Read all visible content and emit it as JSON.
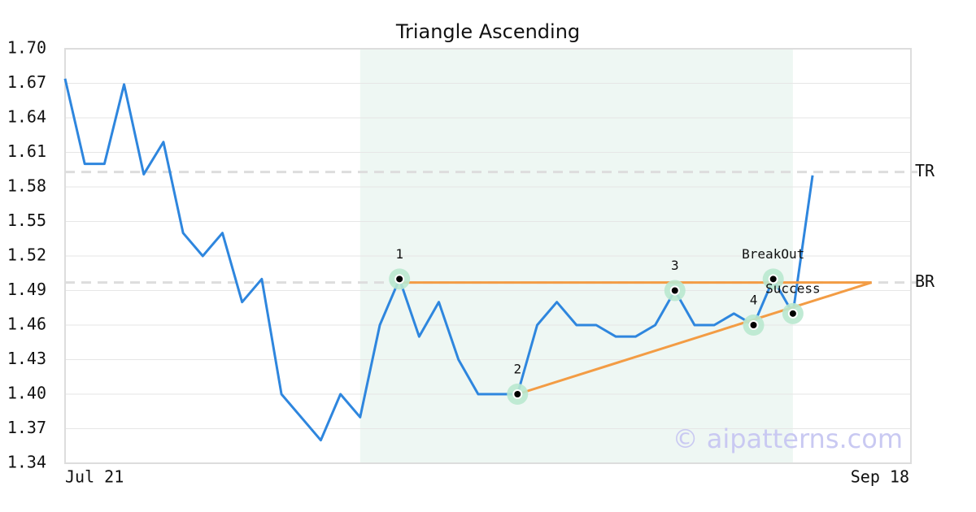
{
  "chart_data": {
    "type": "line",
    "title": "Triangle Ascending",
    "watermark": "© aipatterns.com",
    "categories": [
      "Jul 21",
      null,
      null,
      null,
      null,
      null,
      null,
      null,
      null,
      null,
      null,
      null,
      null,
      null,
      null,
      null,
      null,
      null,
      null,
      null,
      null,
      null,
      null,
      null,
      null,
      null,
      null,
      null,
      null,
      null,
      null,
      null,
      null,
      null,
      null,
      null,
      null,
      null,
      null,
      null,
      null,
      null,
      null,
      "Sep 18"
    ],
    "values": [
      1.674,
      1.6,
      1.6,
      1.669,
      1.591,
      1.619,
      1.54,
      1.52,
      1.54,
      1.48,
      1.5,
      1.4,
      1.38,
      1.36,
      1.4,
      1.38,
      1.46,
      1.5,
      1.45,
      1.48,
      1.43,
      1.4,
      1.4,
      1.4,
      1.46,
      1.48,
      1.46,
      1.46,
      1.45,
      1.45,
      1.46,
      1.49,
      1.46,
      1.46,
      1.47,
      1.46,
      1.5,
      1.47,
      1.59,
      null,
      null,
      null,
      null,
      null
    ],
    "color": "#2e86de",
    "ylim": [
      1.34,
      1.7
    ],
    "yticks": [
      1.34,
      1.37,
      {
        "value": 1.4,
        "label": "1.40"
      },
      1.43,
      1.46,
      1.49,
      1.52,
      1.55,
      1.58,
      1.61,
      1.64,
      1.67,
      {
        "value": 1.7,
        "label": "1.70"
      }
    ],
    "grid": true,
    "levels": [
      {
        "label": "TR",
        "value": 1.593
      },
      {
        "label": "BR",
        "value": 1.497
      }
    ],
    "pattern_range": {
      "start": 15,
      "end": 37,
      "color": "#eef7f3"
    },
    "pattern_points": [
      {
        "label": "1",
        "index": 17,
        "value": 1.5
      },
      {
        "label": "2",
        "index": 23,
        "value": 1.4
      },
      {
        "label": "3",
        "index": 31,
        "value": 1.49
      },
      {
        "label": "4",
        "index": 35,
        "value": 1.46
      },
      {
        "label": "BreakOut",
        "index": 36,
        "value": 1.5
      },
      {
        "label": "Success",
        "index": 37,
        "value": 1.47
      }
    ],
    "trendlines": [
      {
        "from": [
          17,
          1.497
        ],
        "to": [
          41,
          1.497
        ],
        "color": "#f39c44"
      },
      {
        "from": [
          23,
          1.4
        ],
        "to": [
          41,
          1.497
        ],
        "color": "#f39c44"
      }
    ]
  }
}
